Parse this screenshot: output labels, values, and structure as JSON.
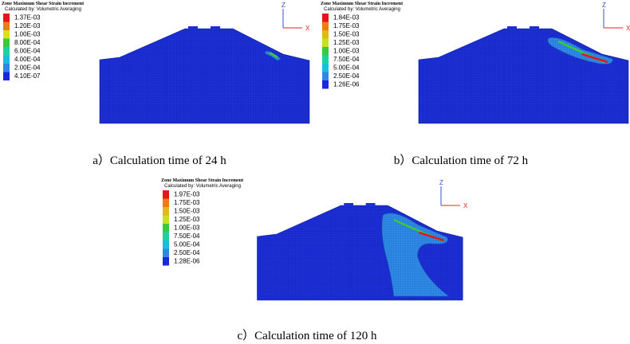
{
  "panels": [
    {
      "legend_title": "Zone Maximum Shear Strain Increment",
      "legend_subtitle": "Calculated by: Volumetric Averaging",
      "legend": [
        {
          "label": "1.37E-03",
          "color": "#e8141c"
        },
        {
          "label": "1.20E-03",
          "color": "#f27a12"
        },
        {
          "label": "1.00E-03",
          "color": "#d8e21a"
        },
        {
          "label": "8.00E-04",
          "color": "#3cc83c"
        },
        {
          "label": "6.00E-04",
          "color": "#1ed2a0"
        },
        {
          "label": "4.00E-04",
          "color": "#18bede"
        },
        {
          "label": "2.00E-04",
          "color": "#2e86e6"
        },
        {
          "label": "4.10E-07",
          "color": "#1a2ad8"
        }
      ],
      "axis_z": "Z",
      "axis_x": "X",
      "caption": "a）Calculation time of 24 h"
    },
    {
      "legend_title": "Zone Maximum Shear Strain Increment",
      "legend_subtitle": "Calculated by: Volumetric Averaging",
      "legend": [
        {
          "label": "1.84E-03",
          "color": "#e8141c"
        },
        {
          "label": "1.75E-03",
          "color": "#f27a12"
        },
        {
          "label": "1.50E-03",
          "color": "#e0b81a"
        },
        {
          "label": "1.25E-03",
          "color": "#c8e21a"
        },
        {
          "label": "1.00E-03",
          "color": "#3cc83c"
        },
        {
          "label": "7.50E-04",
          "color": "#1ed2a0"
        },
        {
          "label": "5.00E-04",
          "color": "#18bede"
        },
        {
          "label": "2.50E-04",
          "color": "#2e86e6"
        },
        {
          "label": "1.26E-06",
          "color": "#1a2ad8"
        }
      ],
      "axis_z": "Z",
      "axis_x": "X",
      "caption": "b）Calculation time of 72 h"
    },
    {
      "legend_title": "Zone Maximum Shear Strain Increment",
      "legend_subtitle": "Calculated by: Volumetric Averaging",
      "legend": [
        {
          "label": "1.97E-03",
          "color": "#e8141c"
        },
        {
          "label": "1.75E-03",
          "color": "#f27a12"
        },
        {
          "label": "1.50E-03",
          "color": "#e0b81a"
        },
        {
          "label": "1.25E-03",
          "color": "#c8e21a"
        },
        {
          "label": "1.00E-03",
          "color": "#3cc83c"
        },
        {
          "label": "7.50E-04",
          "color": "#1ed2a0"
        },
        {
          "label": "5.00E-04",
          "color": "#18bede"
        },
        {
          "label": "2.50E-04",
          "color": "#2e86e6"
        },
        {
          "label": "1.28E-06",
          "color": "#1a2ad8"
        }
      ],
      "axis_z": "Z",
      "axis_x": "X",
      "caption": "c）Calculation time of 120 h"
    }
  ]
}
